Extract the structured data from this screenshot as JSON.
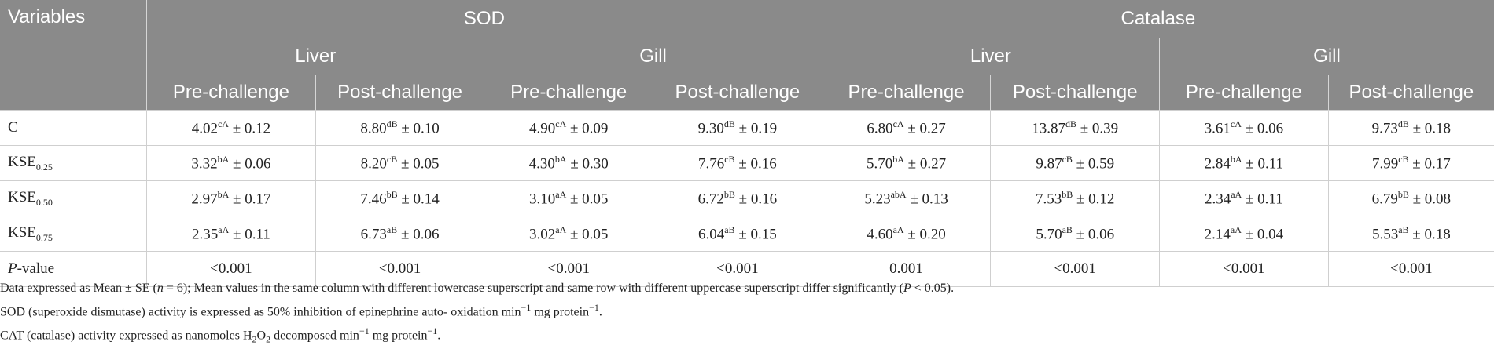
{
  "header": {
    "variables": "Variables",
    "groups": [
      "SOD",
      "Catalase"
    ],
    "tissues": [
      "Liver",
      "Gill",
      "Liver",
      "Gill"
    ],
    "phases": [
      "Pre-challenge",
      "Post-challenge",
      "Pre-challenge",
      "Post-challenge",
      "Pre-challenge",
      "Post-challenge",
      "Pre-challenge",
      "Post-challenge"
    ]
  },
  "rows": [
    {
      "label": "C",
      "sub": "",
      "italic": false,
      "cells": [
        {
          "v": "4.02",
          "s": "cA",
          "e": " ± 0.12"
        },
        {
          "v": "8.80",
          "s": "dB",
          "e": " ± 0.10"
        },
        {
          "v": "4.90",
          "s": "cA",
          "e": " ± 0.09"
        },
        {
          "v": "9.30",
          "s": "dB",
          "e": " ± 0.19"
        },
        {
          "v": "6.80",
          "s": "cA",
          "e": " ± 0.27"
        },
        {
          "v": "13.87",
          "s": "dB",
          "e": " ± 0.39"
        },
        {
          "v": "3.61",
          "s": "cA",
          "e": " ± 0.06"
        },
        {
          "v": "9.73",
          "s": "dB",
          "e": " ± 0.18"
        }
      ]
    },
    {
      "label": "KSE",
      "sub": "0.25",
      "italic": false,
      "cells": [
        {
          "v": "3.32",
          "s": "bA",
          "e": " ± 0.06"
        },
        {
          "v": "8.20",
          "s": "cB",
          "e": " ± 0.05"
        },
        {
          "v": "4.30",
          "s": "bA",
          "e": " ± 0.30"
        },
        {
          "v": "7.76",
          "s": "cB",
          "e": " ± 0.16"
        },
        {
          "v": "5.70",
          "s": "bA",
          "e": " ± 0.27"
        },
        {
          "v": "9.87",
          "s": "cB",
          "e": " ± 0.59"
        },
        {
          "v": "2.84",
          "s": "bA",
          "e": " ± 0.11"
        },
        {
          "v": "7.99",
          "s": "cB",
          "e": " ± 0.17"
        }
      ]
    },
    {
      "label": "KSE",
      "sub": "0.50",
      "italic": false,
      "cells": [
        {
          "v": "2.97",
          "s": "bA",
          "e": " ± 0.17"
        },
        {
          "v": "7.46",
          "s": "bB",
          "e": " ± 0.14"
        },
        {
          "v": "3.10",
          "s": "aA",
          "e": " ± 0.05"
        },
        {
          "v": "6.72",
          "s": "bB",
          "e": " ± 0.16"
        },
        {
          "v": "5.23",
          "s": "abA",
          "e": " ± 0.13"
        },
        {
          "v": "7.53",
          "s": "bB",
          "e": " ± 0.12"
        },
        {
          "v": "2.34",
          "s": "aA",
          "e": " ± 0.11"
        },
        {
          "v": "6.79",
          "s": "bB",
          "e": " ± 0.08"
        }
      ]
    },
    {
      "label": "KSE",
      "sub": "0.75",
      "italic": false,
      "cells": [
        {
          "v": "2.35",
          "s": "aA",
          "e": " ± 0.11"
        },
        {
          "v": "6.73",
          "s": "aB",
          "e": " ± 0.06"
        },
        {
          "v": "3.02",
          "s": "aA",
          "e": " ± 0.05"
        },
        {
          "v": "6.04",
          "s": "aB",
          "e": " ± 0.15"
        },
        {
          "v": "4.60",
          "s": "aA",
          "e": " ± 0.20"
        },
        {
          "v": "5.70",
          "s": "aB",
          "e": " ± 0.06"
        },
        {
          "v": "2.14",
          "s": "aA",
          "e": " ± 0.04"
        },
        {
          "v": "5.53",
          "s": "aB",
          "e": " ± 0.18"
        }
      ]
    },
    {
      "label": "P",
      "sub": "",
      "italic": true,
      "tail": "-value",
      "cells": [
        {
          "v": "<0.001",
          "s": "",
          "e": ""
        },
        {
          "v": "<0.001",
          "s": "",
          "e": ""
        },
        {
          "v": "<0.001",
          "s": "",
          "e": ""
        },
        {
          "v": "<0.001",
          "s": "",
          "e": ""
        },
        {
          "v": "0.001",
          "s": "",
          "e": ""
        },
        {
          "v": "<0.001",
          "s": "",
          "e": ""
        },
        {
          "v": "<0.001",
          "s": "",
          "e": ""
        },
        {
          "v": "<0.001",
          "s": "",
          "e": ""
        }
      ]
    }
  ],
  "notes": {
    "n1_a": "Data expressed as Mean ± SE (",
    "n1_n": "n",
    "n1_b": " = 6); Mean values in the same column with different lowercase superscript and same row with different uppercase superscript differ significantly (",
    "n1_p": "P",
    "n1_c": " < 0.05).",
    "n2_a": "SOD (superoxide dismutase) activity is expressed as 50% inhibition of epinephrine auto- oxidation min",
    "n2_sup1": "−1",
    "n2_b": " mg protein",
    "n2_sup2": "−1",
    "n2_c": ".",
    "n3_a": "CAT (catalase) activity expressed as nanomoles H",
    "n3_sub1": "2",
    "n3_b": "O",
    "n3_sub2": "2",
    "n3_c": " decomposed min",
    "n3_sup1": "−1",
    "n3_d": " mg protein",
    "n3_sup2": "−1",
    "n3_e": "."
  }
}
